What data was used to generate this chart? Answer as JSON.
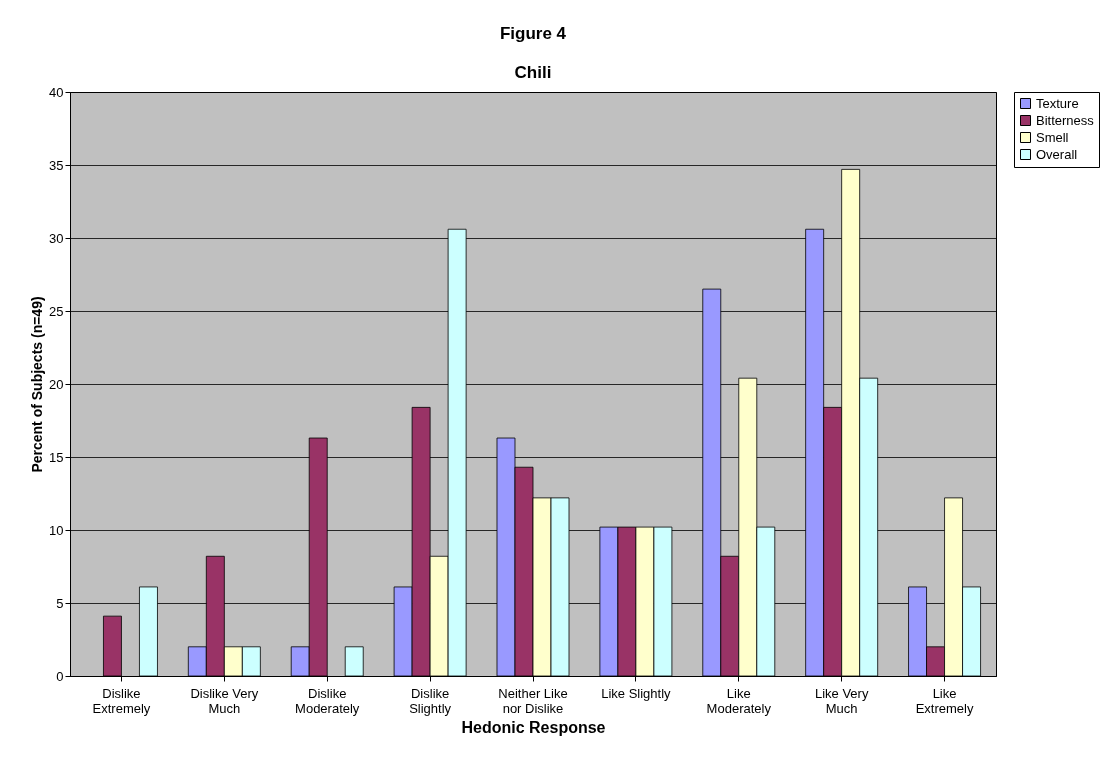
{
  "chart_data": {
    "type": "bar",
    "title": "Figure 4",
    "subtitle": "Chili",
    "xlabel": "Hedonic Response",
    "ylabel": "Percent of Subjects (n=49)",
    "categories": [
      "Dislike\nExtremely",
      "Dislike Very\nMuch",
      "Dislike\nModerately",
      "Dislike\nSlightly",
      "Neither Like\nnor Dislike",
      "Like Slightly",
      "Like\nModerately",
      "Like Very\nMuch",
      "Like\nExtremely"
    ],
    "series": [
      {
        "name": "Texture",
        "color": "#9999ff",
        "values": [
          0,
          2.0,
          2.0,
          6.1,
          16.3,
          10.2,
          26.5,
          30.6,
          6.1
        ]
      },
      {
        "name": "Bitterness",
        "color": "#993366",
        "values": [
          4.1,
          8.2,
          16.3,
          18.4,
          14.3,
          10.2,
          8.2,
          18.4,
          2.0
        ]
      },
      {
        "name": "Smell",
        "color": "#ffffcc",
        "values": [
          0,
          2.0,
          0,
          8.2,
          12.2,
          10.2,
          20.4,
          34.7,
          12.2
        ]
      },
      {
        "name": "Overall",
        "color": "#ccffff",
        "values": [
          6.1,
          2.0,
          2.0,
          30.6,
          12.2,
          10.2,
          10.2,
          20.4,
          6.1
        ]
      }
    ],
    "ylim": [
      0,
      40
    ],
    "yticks": [
      0,
      5,
      10,
      15,
      20,
      25,
      30,
      35,
      40
    ],
    "grid": "y",
    "legend": "right"
  }
}
